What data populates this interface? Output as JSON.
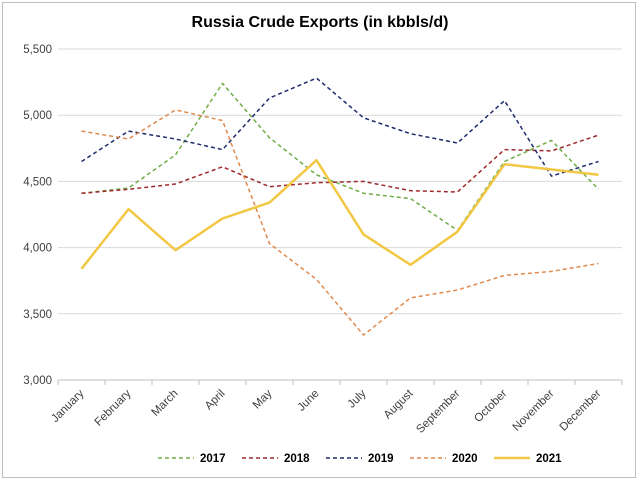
{
  "chart_data": {
    "type": "line",
    "title": "Russia Crude Exports (in kbbls/d)",
    "xlabel": "",
    "ylabel": "",
    "ylim": [
      3000,
      5500
    ],
    "yticks": [
      3000,
      3500,
      4000,
      4500,
      5000,
      5500
    ],
    "ytick_labels": [
      "3,000",
      "3,500",
      "4,000",
      "4,500",
      "5,000",
      "5,500"
    ],
    "categories": [
      "January",
      "February",
      "March",
      "April",
      "May",
      "June",
      "July",
      "August",
      "September",
      "October",
      "November",
      "December"
    ],
    "grid": "horizontal",
    "legend_position": "bottom",
    "series": [
      {
        "name": "2017",
        "color": "#70AD47",
        "style": "dashed",
        "values": [
          4410,
          4450,
          4700,
          5240,
          4830,
          4550,
          4410,
          4370,
          4130,
          4650,
          4810,
          4440
        ]
      },
      {
        "name": "2018",
        "color": "#9E2A2B",
        "style": "dashed",
        "values": [
          4410,
          4440,
          4480,
          4610,
          4460,
          4490,
          4500,
          4430,
          4420,
          4740,
          4730,
          4850
        ]
      },
      {
        "name": "2019",
        "color": "#1F2A6B",
        "style": "dashed",
        "values": [
          4650,
          4880,
          4820,
          4740,
          5130,
          5280,
          4980,
          4860,
          4790,
          5110,
          4540,
          4650
        ]
      },
      {
        "name": "2020",
        "color": "#E08A4C",
        "style": "dashed",
        "values": [
          4880,
          4820,
          5040,
          4960,
          4030,
          3760,
          3340,
          3620,
          3680,
          3790,
          3820,
          3880
        ]
      },
      {
        "name": "2021",
        "color": "#F2C744",
        "style": "solid",
        "values": [
          3840,
          4290,
          3980,
          4220,
          4340,
          4660,
          4100,
          3870,
          4120,
          4630,
          4590,
          4550
        ]
      }
    ]
  }
}
